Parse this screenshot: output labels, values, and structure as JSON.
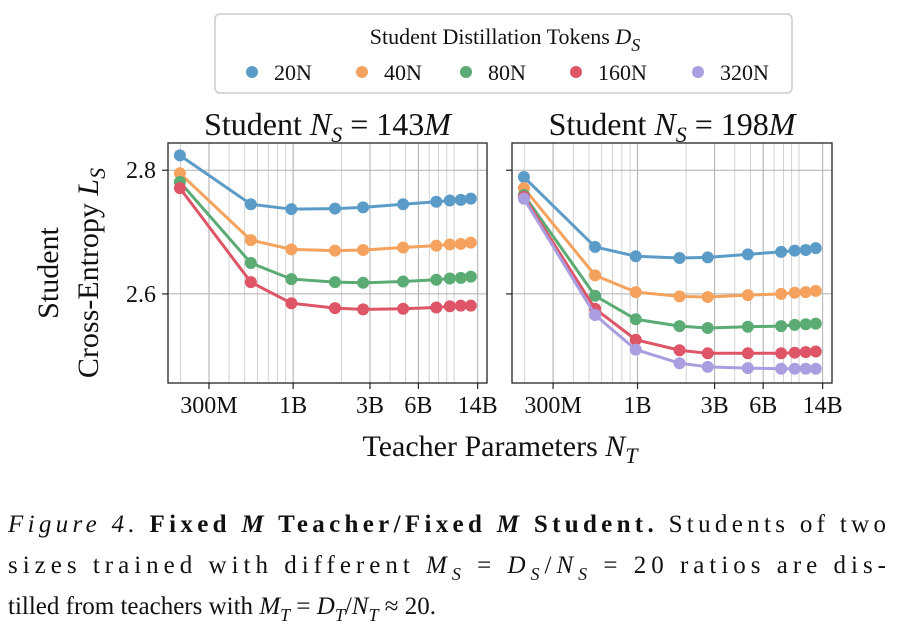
{
  "chart_data": [
    {
      "type": "line",
      "xscale": "log",
      "title": {
        "text": "Student ",
        "symbol": "N",
        "subscript": "S",
        "equals": " = 143",
        "unit": "M"
      },
      "ylabel": {
        "line1": "Student",
        "line2": "Cross-Entropy ",
        "symbol": "L",
        "subscript": "S"
      },
      "xlabel": {
        "text": "Teacher Parameters ",
        "symbol": "N",
        "subscript": "T"
      },
      "x": [
        198000000,
        546000000,
        975000000,
        1820000000,
        2720000000,
        4820000000,
        7750000000,
        9400000000,
        11000000000,
        12700000000
      ],
      "series": [
        {
          "color": "#5b9bc8",
          "values": [
            2.824,
            2.745,
            2.737,
            2.738,
            2.74,
            2.745,
            2.749,
            2.751,
            2.752,
            2.754
          ]
        },
        {
          "color": "#f4a25d",
          "values": [
            2.795,
            2.687,
            2.672,
            2.67,
            2.671,
            2.675,
            2.678,
            2.68,
            2.681,
            2.683
          ]
        },
        {
          "color": "#5aab74",
          "values": [
            2.781,
            2.65,
            2.624,
            2.619,
            2.618,
            2.62,
            2.623,
            2.625,
            2.626,
            2.628
          ]
        },
        {
          "color": "#dd5566",
          "values": [
            2.771,
            2.619,
            2.585,
            2.577,
            2.575,
            2.576,
            2.578,
            2.58,
            2.581,
            2.581
          ]
        }
      ],
      "xlim": [
        167000000,
        16000000000
      ],
      "ylim": [
        2.456,
        2.844
      ],
      "xticks": [
        {
          "value": 300000000,
          "label": "300M"
        },
        {
          "value": 1000000000,
          "label": "1B"
        },
        {
          "value": 3000000000,
          "label": "3B"
        },
        {
          "value": 6000000000,
          "label": "6B"
        },
        {
          "value": 14000000000,
          "label": "14B"
        }
      ],
      "yticks": [
        2.6,
        2.8
      ],
      "grid": true
    },
    {
      "type": "line",
      "xscale": "log",
      "title": {
        "text": "Student ",
        "symbol": "N",
        "subscript": "S",
        "equals": " = 198",
        "unit": "M"
      },
      "legend_title": {
        "text": "Student Distillation Tokens ",
        "symbol": "D",
        "subscript": "S"
      },
      "x": [
        198000000,
        546000000,
        975000000,
        1820000000,
        2720000000,
        4820000000,
        7750000000,
        9400000000,
        11000000000,
        12700000000
      ],
      "series": [
        {
          "name": "20N",
          "color": "#5b9bc8",
          "values": [
            2.789,
            2.676,
            2.661,
            2.658,
            2.659,
            2.664,
            2.668,
            2.67,
            2.671,
            2.674
          ]
        },
        {
          "name": "40N",
          "color": "#f4a25d",
          "values": [
            2.771,
            2.63,
            2.603,
            2.596,
            2.595,
            2.598,
            2.6,
            2.602,
            2.603,
            2.605
          ]
        },
        {
          "name": "80N",
          "color": "#5aab74",
          "values": [
            2.76,
            2.597,
            2.559,
            2.548,
            2.545,
            2.547,
            2.548,
            2.55,
            2.551,
            2.552
          ]
        },
        {
          "name": "160N",
          "color": "#dd5566",
          "values": [
            2.757,
            2.576,
            2.526,
            2.509,
            2.504,
            2.504,
            2.504,
            2.505,
            2.506,
            2.507
          ]
        },
        {
          "name": "320N",
          "color": "#ab9ee0",
          "values": [
            2.754,
            2.566,
            2.51,
            2.488,
            2.482,
            2.48,
            2.479,
            2.479,
            2.479,
            2.479
          ]
        }
      ],
      "xlim": [
        167000000,
        16000000000
      ],
      "ylim": [
        2.456,
        2.844
      ],
      "xticks": [
        {
          "value": 300000000,
          "label": "300M"
        },
        {
          "value": 1000000000,
          "label": "1B"
        },
        {
          "value": 3000000000,
          "label": "3B"
        },
        {
          "value": 6000000000,
          "label": "6B"
        },
        {
          "value": 14000000000,
          "label": "14B"
        }
      ],
      "yticks": [
        2.6,
        2.8
      ],
      "grid": true
    }
  ],
  "caption": {
    "lines": [
      [
        "Figure 4.",
        " Fixed ",
        "M",
        " Teacher/Fixed ",
        "M",
        " Student.",
        " Students of two"
      ],
      [
        "sizes trained with different ",
        "M",
        "S",
        " = ",
        "D",
        "S",
        "/",
        "N",
        "S",
        " = 20 ratios are dis-"
      ],
      [
        "tilled from teachers with ",
        "M",
        "T",
        " = ",
        "D",
        "T",
        "/",
        "N",
        "T",
        " ≈ 20."
      ]
    ]
  }
}
